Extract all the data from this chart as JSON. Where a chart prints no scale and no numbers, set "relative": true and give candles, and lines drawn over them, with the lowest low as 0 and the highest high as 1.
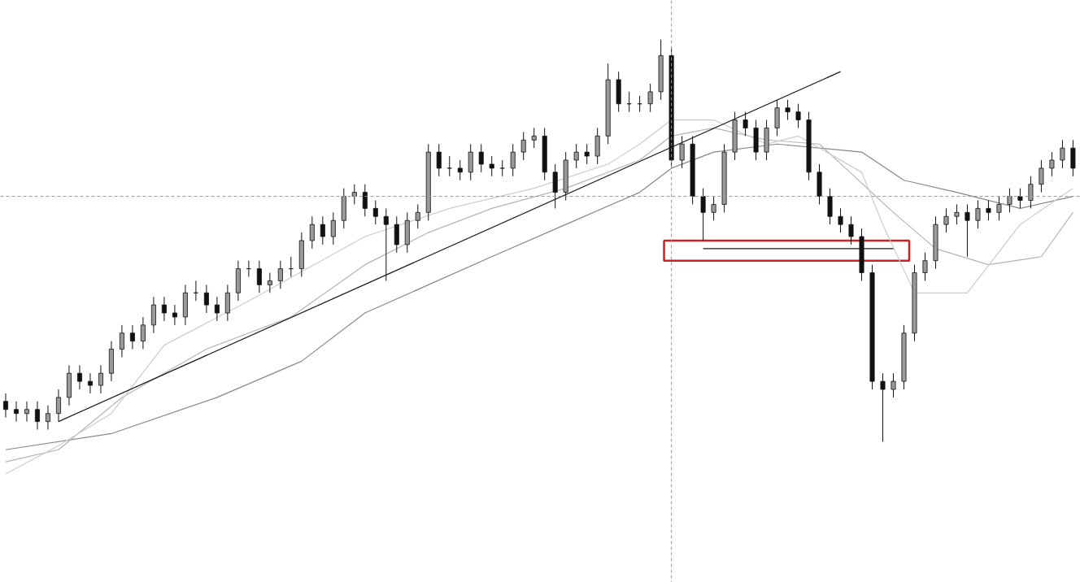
{
  "chart_data": {
    "type": "candlestick",
    "relative": true,
    "tick_labels": false,
    "grid": false,
    "ref_lines": [
      {
        "axis": "y",
        "value": 0.61,
        "color": "#999999",
        "line_style": "dashed"
      }
    ],
    "categories": [
      null,
      null,
      null,
      null,
      null,
      null,
      null,
      null,
      null,
      null,
      null,
      null,
      null,
      null,
      null,
      null,
      null,
      null,
      null,
      null,
      null,
      null,
      null,
      null,
      null,
      null,
      null,
      null,
      null,
      null,
      null,
      null,
      null,
      null,
      null,
      null,
      null,
      null,
      null,
      null,
      null,
      null,
      null,
      null,
      null,
      null,
      null,
      null,
      null,
      null,
      null,
      null,
      null,
      null,
      null,
      null,
      null,
      null,
      null,
      null,
      null,
      null,
      null,
      null,
      null,
      null,
      null,
      null,
      null,
      null,
      null,
      null,
      null,
      null,
      null,
      null,
      null,
      null,
      null,
      null,
      null,
      null,
      null,
      null,
      null,
      null,
      null,
      null,
      null,
      null,
      null,
      null,
      null,
      null,
      null,
      null,
      null,
      null,
      null,
      null,
      null,
      null
    ],
    "ohlc": [
      [
        0.1,
        0.12,
        0.06,
        0.08
      ],
      [
        0.08,
        0.1,
        0.05,
        0.07
      ],
      [
        0.07,
        0.1,
        0.05,
        0.08
      ],
      [
        0.08,
        0.1,
        0.03,
        0.05
      ],
      [
        0.05,
        0.09,
        0.03,
        0.07
      ],
      [
        0.07,
        0.13,
        0.05,
        0.11
      ],
      [
        0.11,
        0.19,
        0.09,
        0.17
      ],
      [
        0.17,
        0.19,
        0.13,
        0.15
      ],
      [
        0.15,
        0.17,
        0.12,
        0.14
      ],
      [
        0.14,
        0.19,
        0.12,
        0.17
      ],
      [
        0.17,
        0.25,
        0.15,
        0.23
      ],
      [
        0.23,
        0.29,
        0.21,
        0.27
      ],
      [
        0.27,
        0.29,
        0.23,
        0.25
      ],
      [
        0.25,
        0.31,
        0.23,
        0.29
      ],
      [
        0.29,
        0.36,
        0.27,
        0.34
      ],
      [
        0.34,
        0.36,
        0.3,
        0.32
      ],
      [
        0.32,
        0.34,
        0.29,
        0.31
      ],
      [
        0.31,
        0.39,
        0.29,
        0.37
      ],
      [
        0.37,
        0.4,
        0.35,
        0.37
      ],
      [
        0.37,
        0.39,
        0.32,
        0.34
      ],
      [
        0.34,
        0.36,
        0.3,
        0.32
      ],
      [
        0.32,
        0.39,
        0.3,
        0.37
      ],
      [
        0.37,
        0.45,
        0.35,
        0.43
      ],
      [
        0.43,
        0.45,
        0.41,
        0.43
      ],
      [
        0.43,
        0.45,
        0.37,
        0.39
      ],
      [
        0.39,
        0.42,
        0.37,
        0.4
      ],
      [
        0.4,
        0.45,
        0.38,
        0.43
      ],
      [
        0.43,
        0.46,
        0.41,
        0.43
      ],
      [
        0.43,
        0.52,
        0.41,
        0.5
      ],
      [
        0.5,
        0.56,
        0.48,
        0.54
      ],
      [
        0.54,
        0.56,
        0.49,
        0.51
      ],
      [
        0.51,
        0.57,
        0.49,
        0.55
      ],
      [
        0.55,
        0.63,
        0.53,
        0.61
      ],
      [
        0.61,
        0.64,
        0.59,
        0.62
      ],
      [
        0.62,
        0.64,
        0.56,
        0.58
      ],
      [
        0.58,
        0.6,
        0.54,
        0.56
      ],
      [
        0.56,
        0.58,
        0.4,
        0.54
      ],
      [
        0.54,
        0.56,
        0.47,
        0.49
      ],
      [
        0.49,
        0.57,
        0.47,
        0.55
      ],
      [
        0.55,
        0.59,
        0.53,
        0.57
      ],
      [
        0.57,
        0.74,
        0.55,
        0.72
      ],
      [
        0.72,
        0.74,
        0.66,
        0.68
      ],
      [
        0.68,
        0.71,
        0.66,
        0.68
      ],
      [
        0.68,
        0.7,
        0.65,
        0.67
      ],
      [
        0.67,
        0.74,
        0.65,
        0.72
      ],
      [
        0.72,
        0.74,
        0.67,
        0.69
      ],
      [
        0.69,
        0.71,
        0.66,
        0.68
      ],
      [
        0.68,
        0.7,
        0.66,
        0.68
      ],
      [
        0.68,
        0.74,
        0.66,
        0.72
      ],
      [
        0.72,
        0.77,
        0.7,
        0.75
      ],
      [
        0.75,
        0.78,
        0.73,
        0.76
      ],
      [
        0.76,
        0.78,
        0.65,
        0.67
      ],
      [
        0.67,
        0.69,
        0.58,
        0.62
      ],
      [
        0.62,
        0.72,
        0.6,
        0.7
      ],
      [
        0.7,
        0.74,
        0.68,
        0.72
      ],
      [
        0.72,
        0.74,
        0.69,
        0.71
      ],
      [
        0.71,
        0.78,
        0.69,
        0.76
      ],
      [
        0.76,
        0.94,
        0.74,
        0.9
      ],
      [
        0.9,
        0.92,
        0.82,
        0.84
      ],
      [
        0.84,
        0.87,
        0.82,
        0.84
      ],
      [
        0.84,
        0.86,
        0.82,
        0.84
      ],
      [
        0.84,
        0.89,
        0.82,
        0.87
      ],
      [
        0.87,
        1.0,
        0.85,
        0.96
      ],
      [
        0.96,
        0.98,
        0.68,
        0.7
      ],
      [
        0.7,
        0.76,
        0.68,
        0.74
      ],
      [
        0.74,
        0.76,
        0.59,
        0.61
      ],
      [
        0.61,
        0.63,
        0.5,
        0.57
      ],
      [
        0.57,
        0.61,
        0.55,
        0.59
      ],
      [
        0.59,
        0.74,
        0.57,
        0.72
      ],
      [
        0.72,
        0.82,
        0.7,
        0.8
      ],
      [
        0.8,
        0.82,
        0.76,
        0.78
      ],
      [
        0.78,
        0.8,
        0.7,
        0.72
      ],
      [
        0.72,
        0.8,
        0.7,
        0.78
      ],
      [
        0.78,
        0.85,
        0.76,
        0.83
      ],
      [
        0.83,
        0.85,
        0.8,
        0.82
      ],
      [
        0.82,
        0.84,
        0.78,
        0.8
      ],
      [
        0.8,
        0.82,
        0.65,
        0.67
      ],
      [
        0.67,
        0.69,
        0.59,
        0.61
      ],
      [
        0.61,
        0.63,
        0.54,
        0.56
      ],
      [
        0.56,
        0.58,
        0.52,
        0.54
      ],
      [
        0.54,
        0.56,
        0.49,
        0.51
      ],
      [
        0.51,
        0.53,
        0.4,
        0.42
      ],
      [
        0.42,
        0.44,
        0.13,
        0.15
      ],
      [
        0.15,
        0.17,
        0.0,
        0.13
      ],
      [
        0.13,
        0.17,
        0.11,
        0.15
      ],
      [
        0.15,
        0.29,
        0.13,
        0.27
      ],
      [
        0.27,
        0.44,
        0.25,
        0.42
      ],
      [
        0.42,
        0.47,
        0.4,
        0.45
      ],
      [
        0.45,
        0.56,
        0.43,
        0.54
      ],
      [
        0.54,
        0.58,
        0.52,
        0.56
      ],
      [
        0.56,
        0.59,
        0.54,
        0.57
      ],
      [
        0.57,
        0.59,
        0.46,
        0.55
      ],
      [
        0.55,
        0.6,
        0.53,
        0.58
      ],
      [
        0.58,
        0.6,
        0.55,
        0.57
      ],
      [
        0.57,
        0.61,
        0.55,
        0.59
      ],
      [
        0.59,
        0.63,
        0.57,
        0.61
      ],
      [
        0.61,
        0.63,
        0.58,
        0.6
      ],
      [
        0.6,
        0.66,
        0.58,
        0.64
      ],
      [
        0.64,
        0.7,
        0.62,
        0.68
      ],
      [
        0.68,
        0.72,
        0.66,
        0.7
      ],
      [
        0.7,
        0.75,
        0.68,
        0.73
      ],
      [
        0.73,
        0.75,
        0.66,
        0.68
      ]
    ],
    "colors": [
      "#111111",
      "#111111",
      "#9a9a9a",
      "#111111",
      "#9a9a9a",
      "#9a9a9a",
      "#9a9a9a",
      "#111111",
      "#111111",
      "#9a9a9a",
      "#9a9a9a",
      "#9a9a9a",
      "#111111",
      "#9a9a9a",
      "#9a9a9a",
      "#111111",
      "#111111",
      "#9a9a9a",
      "#111111",
      "#111111",
      "#111111",
      "#9a9a9a",
      "#9a9a9a",
      "#111111",
      "#111111",
      "#9a9a9a",
      "#9a9a9a",
      "#111111",
      "#9a9a9a",
      "#9a9a9a",
      "#111111",
      "#9a9a9a",
      "#9a9a9a",
      "#9a9a9a",
      "#111111",
      "#111111",
      "#111111",
      "#111111",
      "#9a9a9a",
      "#9a9a9a",
      "#9a9a9a",
      "#111111",
      "#111111",
      "#111111",
      "#9a9a9a",
      "#111111",
      "#111111",
      "#111111",
      "#9a9a9a",
      "#9a9a9a",
      "#9a9a9a",
      "#111111",
      "#111111",
      "#9a9a9a",
      "#9a9a9a",
      "#111111",
      "#9a9a9a",
      "#9a9a9a",
      "#111111",
      "#111111",
      "#111111",
      "#9a9a9a",
      "#9a9a9a",
      "#111111",
      "#9a9a9a",
      "#111111",
      "#111111",
      "#9a9a9a",
      "#9a9a9a",
      "#9a9a9a",
      "#111111",
      "#111111",
      "#9a9a9a",
      "#9a9a9a",
      "#111111",
      "#111111",
      "#111111",
      "#111111",
      "#111111",
      "#111111",
      "#111111",
      "#111111",
      "#111111",
      "#111111",
      "#9a9a9a",
      "#9a9a9a",
      "#9a9a9a",
      "#9a9a9a",
      "#9a9a9a",
      "#9a9a9a",
      "#9a9a9a",
      "#111111",
      "#9a9a9a",
      "#111111",
      "#9a9a9a",
      "#9a9a9a",
      "#111111",
      "#9a9a9a",
      "#9a9a9a",
      "#9a9a9a",
      "#9a9a9a",
      "#111111"
    ],
    "series": [
      {
        "type": "line",
        "color": "#888888",
        "values": [
          -0.02,
          null,
          null,
          null,
          null,
          null,
          null,
          null,
          null,
          null,
          0.02,
          null,
          null,
          null,
          null,
          null,
          null,
          null,
          null,
          null,
          0.11,
          null,
          null,
          null,
          null,
          null,
          null,
          null,
          0.2,
          null,
          null,
          null,
          null,
          null,
          0.32,
          null,
          null,
          null,
          null,
          null,
          0.39,
          null,
          null,
          null,
          null,
          null,
          0.46,
          null,
          null,
          null,
          null,
          null,
          null,
          0.54,
          null,
          null,
          null,
          null,
          null,
          null,
          0.62,
          null,
          null,
          0.68,
          null,
          null,
          null,
          0.72,
          null,
          null,
          null,
          null,
          null,
          0.74,
          null,
          null,
          null,
          null,
          null,
          null,
          null,
          0.72,
          null,
          null,
          null,
          0.65,
          null,
          null,
          null,
          null,
          0.62,
          null,
          null,
          null,
          null,
          null,
          0.58,
          null,
          null,
          null,
          null,
          0.61
        ]
      },
      {
        "type": "line",
        "color": "#b4b4b4",
        "values": [
          -0.05,
          null,
          null,
          null,
          null,
          -0.02,
          null,
          null,
          null,
          null,
          null,
          0.11,
          null,
          null,
          null,
          null,
          null,
          null,
          null,
          0.23,
          null,
          null,
          null,
          null,
          null,
          null,
          null,
          0.31,
          null,
          null,
          null,
          null,
          null,
          null,
          0.44,
          null,
          null,
          null,
          null,
          null,
          0.52,
          null,
          null,
          null,
          null,
          null,
          0.58,
          null,
          null,
          null,
          null,
          null,
          null,
          0.63,
          null,
          null,
          null,
          null,
          null,
          null,
          0.7,
          null,
          null,
          0.76,
          null,
          null,
          null,
          0.78,
          null,
          null,
          null,
          null,
          0.75,
          null,
          null,
          null,
          null,
          0.74,
          null,
          null,
          null,
          null,
          null,
          null,
          0.57,
          null,
          null,
          null,
          0.48,
          null,
          null,
          null,
          null,
          0.44,
          null,
          null,
          null,
          null,
          0.46,
          null,
          null,
          0.57
        ]
      },
      {
        "type": "line",
        "color": "#cccccc",
        "values": [
          -0.08,
          null,
          null,
          null,
          null,
          -0.01,
          null,
          null,
          null,
          null,
          0.07,
          null,
          null,
          null,
          null,
          0.24,
          null,
          null,
          null,
          null,
          null,
          null,
          null,
          0.35,
          null,
          null,
          null,
          null,
          null,
          null,
          null,
          null,
          null,
          null,
          0.51,
          null,
          null,
          null,
          null,
          null,
          null,
          null,
          0.58,
          null,
          null,
          null,
          null,
          null,
          null,
          null,
          0.63,
          null,
          null,
          null,
          null,
          null,
          null,
          0.69,
          null,
          null,
          0.74,
          null,
          null,
          0.8,
          null,
          null,
          null,
          0.8,
          null,
          null,
          null,
          null,
          0.74,
          null,
          null,
          0.76,
          null,
          null,
          null,
          null,
          null,
          0.67,
          null,
          0.54,
          null,
          null,
          0.37,
          null,
          null,
          null,
          null,
          0.37,
          null,
          null,
          null,
          null,
          0.54,
          null,
          null,
          null,
          null,
          0.63
        ]
      },
      {
        "type": "line",
        "color": "#1a1a1a",
        "values": [
          null,
          null,
          null,
          null,
          null,
          0.05,
          null,
          null,
          null,
          null,
          null,
          null,
          null,
          null,
          null,
          null,
          null,
          null,
          null,
          null,
          null,
          null,
          null,
          null,
          null,
          null,
          null,
          null,
          null,
          null,
          null,
          null,
          null,
          null,
          null,
          null,
          null,
          null,
          null,
          null,
          null,
          null,
          null,
          null,
          null,
          null,
          null,
          null,
          null,
          null,
          null,
          null,
          null,
          null,
          null,
          null,
          null,
          null,
          null,
          null,
          null,
          null,
          null,
          null,
          null,
          null,
          null,
          null,
          null,
          null,
          null,
          null,
          null,
          null,
          null,
          null,
          null,
          null,
          null,
          0.92,
          null,
          null,
          null,
          null,
          null,
          null,
          null,
          null,
          null,
          null,
          null,
          null,
          null,
          null,
          null,
          null,
          null,
          null,
          null,
          null,
          null,
          null
        ]
      },
      {
        "type": "line",
        "color": "#1a1a1a",
        "values": [
          null,
          null,
          null,
          null,
          null,
          null,
          null,
          null,
          null,
          null,
          null,
          null,
          null,
          null,
          null,
          null,
          null,
          null,
          null,
          null,
          null,
          null,
          null,
          null,
          null,
          null,
          null,
          null,
          null,
          null,
          null,
          null,
          null,
          null,
          null,
          null,
          null,
          null,
          null,
          null,
          null,
          null,
          null,
          null,
          null,
          null,
          null,
          null,
          null,
          null,
          null,
          null,
          null,
          null,
          null,
          null,
          null,
          null,
          null,
          null,
          null,
          null,
          null,
          null,
          null,
          null,
          0.48,
          null,
          null,
          null,
          null,
          null,
          null,
          null,
          null,
          null,
          null,
          null,
          null,
          null,
          null,
          null,
          null,
          null,
          0.48,
          null,
          null,
          null,
          null,
          null,
          null,
          null,
          null,
          null,
          null,
          null,
          null,
          null,
          null,
          null,
          null,
          null
        ]
      }
    ]
  }
}
